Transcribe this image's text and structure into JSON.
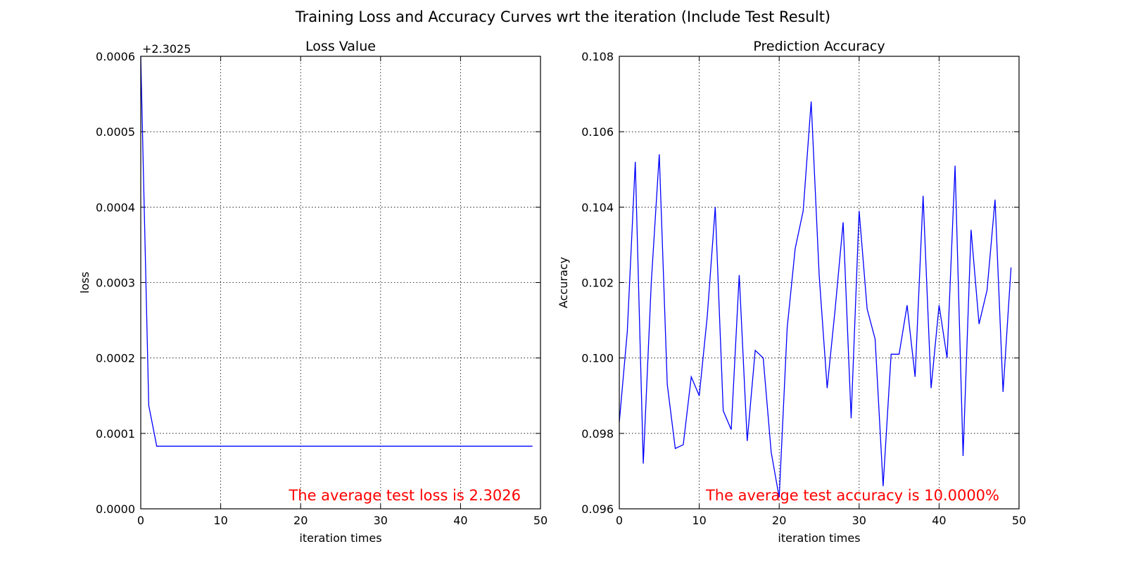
{
  "figure": {
    "suptitle": "Training Loss and Accuracy Curves wrt the iteration (Include Test Result)"
  },
  "chart_data": [
    {
      "type": "line",
      "title": "Loss Value",
      "xlabel": "iteration times",
      "ylabel": "loss",
      "offset_text": "+2.3025",
      "xlim": [
        0,
        50
      ],
      "ylim": [
        0,
        0.0006
      ],
      "xticks": [
        0,
        10,
        20,
        30,
        40,
        50
      ],
      "xtick_labels": [
        "0",
        "10",
        "20",
        "30",
        "40",
        "50"
      ],
      "yticks": [
        0,
        0.0001,
        0.0002,
        0.0003,
        0.0004,
        0.0005,
        0.0006
      ],
      "ytick_labels": [
        "0.0000",
        "0.0001",
        "0.0002",
        "0.0003",
        "0.0004",
        "0.0005",
        "0.0006"
      ],
      "grid": true,
      "color": "#0000ff",
      "annotation": "The average test loss is 2.3026",
      "annotation_color": "#ff0000",
      "x": [
        0,
        1,
        2,
        3,
        4,
        5,
        6,
        7,
        8,
        9,
        10,
        11,
        12,
        13,
        14,
        15,
        16,
        17,
        18,
        19,
        20,
        21,
        22,
        23,
        24,
        25,
        26,
        27,
        28,
        29,
        30,
        31,
        32,
        33,
        34,
        35,
        36,
        37,
        38,
        39,
        40,
        41,
        42,
        43,
        44,
        45,
        46,
        47,
        48,
        49
      ],
      "y": [
        0.0006,
        0.000137,
        8.3e-05,
        8.3e-05,
        8.3e-05,
        8.3e-05,
        8.3e-05,
        8.3e-05,
        8.3e-05,
        8.3e-05,
        8.3e-05,
        8.3e-05,
        8.3e-05,
        8.3e-05,
        8.3e-05,
        8.3e-05,
        8.3e-05,
        8.3e-05,
        8.3e-05,
        8.3e-05,
        8.3e-05,
        8.3e-05,
        8.3e-05,
        8.3e-05,
        8.3e-05,
        8.3e-05,
        8.3e-05,
        8.3e-05,
        8.3e-05,
        8.3e-05,
        8.3e-05,
        8.3e-05,
        8.3e-05,
        8.3e-05,
        8.3e-05,
        8.3e-05,
        8.3e-05,
        8.3e-05,
        8.3e-05,
        8.3e-05,
        8.3e-05,
        8.3e-05,
        8.3e-05,
        8.3e-05,
        8.3e-05,
        8.3e-05,
        8.3e-05,
        8.3e-05,
        8.3e-05,
        8.3e-05
      ]
    },
    {
      "type": "line",
      "title": "Prediction Accuracy",
      "xlabel": "iteration times",
      "ylabel": "Accuracy",
      "offset_text": "",
      "xlim": [
        0,
        50
      ],
      "ylim": [
        0.096,
        0.108
      ],
      "xticks": [
        0,
        10,
        20,
        30,
        40,
        50
      ],
      "xtick_labels": [
        "0",
        "10",
        "20",
        "30",
        "40",
        "50"
      ],
      "yticks": [
        0.096,
        0.098,
        0.1,
        0.102,
        0.104,
        0.106,
        0.108
      ],
      "ytick_labels": [
        "0.096",
        "0.098",
        "0.100",
        "0.102",
        "0.104",
        "0.106",
        "0.108"
      ],
      "grid": true,
      "color": "#0000ff",
      "annotation": "The average test accuracy is 10.0000%",
      "annotation_color": "#ff0000",
      "x": [
        0,
        1,
        2,
        3,
        4,
        5,
        6,
        7,
        8,
        9,
        10,
        11,
        12,
        13,
        14,
        15,
        16,
        17,
        18,
        19,
        20,
        21,
        22,
        23,
        24,
        25,
        26,
        27,
        28,
        29,
        30,
        31,
        32,
        33,
        34,
        35,
        36,
        37,
        38,
        39,
        40,
        41,
        42,
        43,
        44,
        45,
        46,
        47,
        48,
        49
      ],
      "y": [
        0.0983,
        0.1007,
        0.1052,
        0.0972,
        0.102,
        0.1054,
        0.0993,
        0.0976,
        0.0977,
        0.0995,
        0.099,
        0.1011,
        0.104,
        0.0986,
        0.0981,
        0.1022,
        0.0978,
        0.1002,
        0.1,
        0.0975,
        0.0963,
        0.1008,
        0.1029,
        0.1039,
        0.1068,
        0.1022,
        0.0992,
        0.1013,
        0.1036,
        0.0984,
        0.1039,
        0.1013,
        0.1005,
        0.0966,
        0.1001,
        0.1001,
        0.1014,
        0.0995,
        0.1043,
        0.0992,
        0.1014,
        0.1,
        0.1051,
        0.0974,
        0.1034,
        0.1009,
        0.1018,
        0.1042,
        0.0991,
        0.1024
      ]
    }
  ]
}
